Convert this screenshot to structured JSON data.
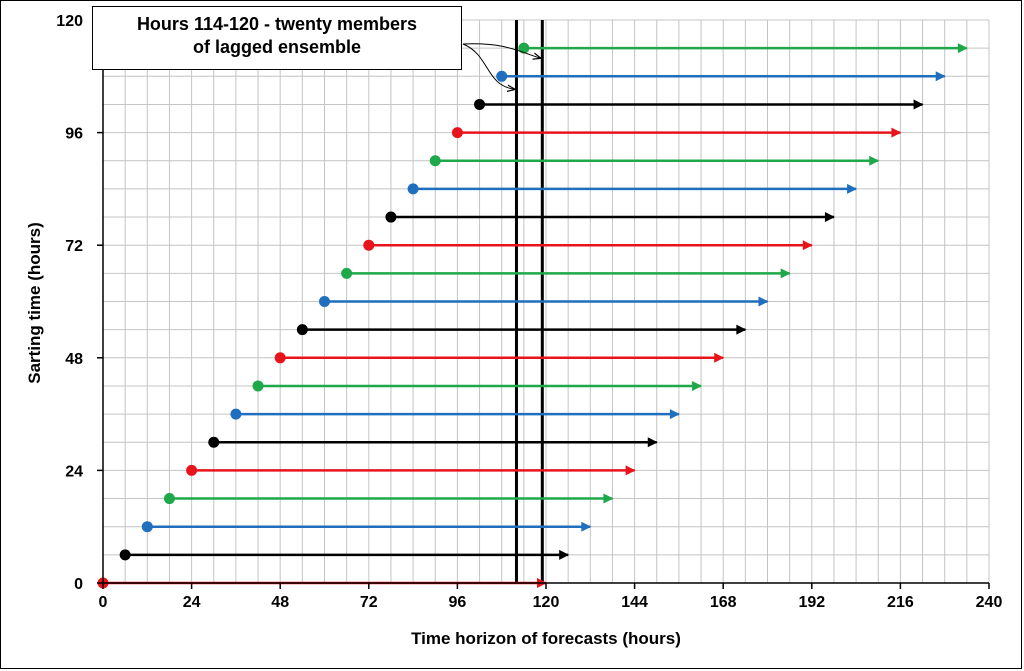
{
  "chart_data": {
    "type": "scatter",
    "xlabel": "Time horizon of forecasts (hours)",
    "ylabel": "Sarting time (hours)",
    "xlim": [
      0,
      240
    ],
    "ylim": [
      0,
      120
    ],
    "x_ticks": [
      0,
      24,
      48,
      72,
      96,
      120,
      144,
      168,
      192,
      216,
      240
    ],
    "y_ticks": [
      0,
      24,
      48,
      72,
      96,
      120
    ],
    "minor_grid_step": 6,
    "grid": true,
    "annotation": {
      "line1": "Hours 114-120 - twenty members",
      "line2": "of lagged ensemble"
    },
    "vertical_lines_x": [
      112,
      119
    ],
    "members": [
      {
        "start": 0,
        "end": 120,
        "color": "#e8141c"
      },
      {
        "start": 6,
        "end": 126,
        "color": "#000000"
      },
      {
        "start": 12,
        "end": 132,
        "color": "#1f6fbe"
      },
      {
        "start": 18,
        "end": 138,
        "color": "#1ea84a"
      },
      {
        "start": 24,
        "end": 144,
        "color": "#e8141c"
      },
      {
        "start": 30,
        "end": 150,
        "color": "#000000"
      },
      {
        "start": 36,
        "end": 156,
        "color": "#1f6fbe"
      },
      {
        "start": 42,
        "end": 162,
        "color": "#1ea84a"
      },
      {
        "start": 48,
        "end": 168,
        "color": "#e8141c"
      },
      {
        "start": 54,
        "end": 174,
        "color": "#000000"
      },
      {
        "start": 60,
        "end": 180,
        "color": "#1f6fbe"
      },
      {
        "start": 66,
        "end": 186,
        "color": "#1ea84a"
      },
      {
        "start": 72,
        "end": 192,
        "color": "#e8141c"
      },
      {
        "start": 78,
        "end": 198,
        "color": "#000000"
      },
      {
        "start": 84,
        "end": 204,
        "color": "#1f6fbe"
      },
      {
        "start": 90,
        "end": 210,
        "color": "#1ea84a"
      },
      {
        "start": 96,
        "end": 216,
        "color": "#e8141c"
      },
      {
        "start": 102,
        "end": 222,
        "color": "#000000"
      },
      {
        "start": 108,
        "end": 228,
        "color": "#1f6fbe"
      },
      {
        "start": 114,
        "end": 234,
        "color": "#1ea84a"
      }
    ]
  }
}
